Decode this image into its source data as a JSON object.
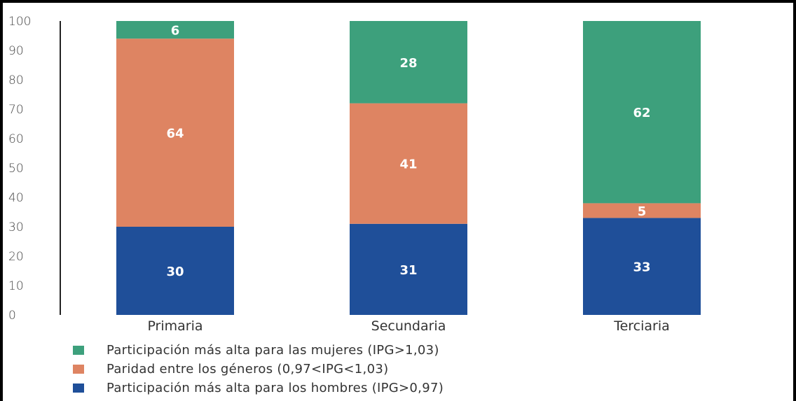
{
  "chart_data": {
    "type": "bar",
    "stacked": true,
    "categories": [
      "Primaria",
      "Secundaria",
      "Terciaria"
    ],
    "ylim": [
      0,
      100
    ],
    "yticks": [
      0,
      10,
      20,
      30,
      40,
      50,
      60,
      70,
      80,
      90,
      100
    ],
    "series": [
      {
        "name": "Participación más alta para los hombres (IPG>0,97)",
        "color": "#1f4f99",
        "values": [
          30,
          31,
          33
        ]
      },
      {
        "name": "Paridad entre los géneros (0,97<IPG<1,03)",
        "color": "#de8462",
        "values": [
          64,
          41,
          5
        ]
      },
      {
        "name": "Participación más alta para las mujeres (IPG>1,03)",
        "color": "#3da07c",
        "values": [
          6,
          28,
          62
        ]
      }
    ],
    "legend_order": [
      2,
      1,
      0
    ],
    "legend_placement": "bottom-left",
    "grid": false
  }
}
